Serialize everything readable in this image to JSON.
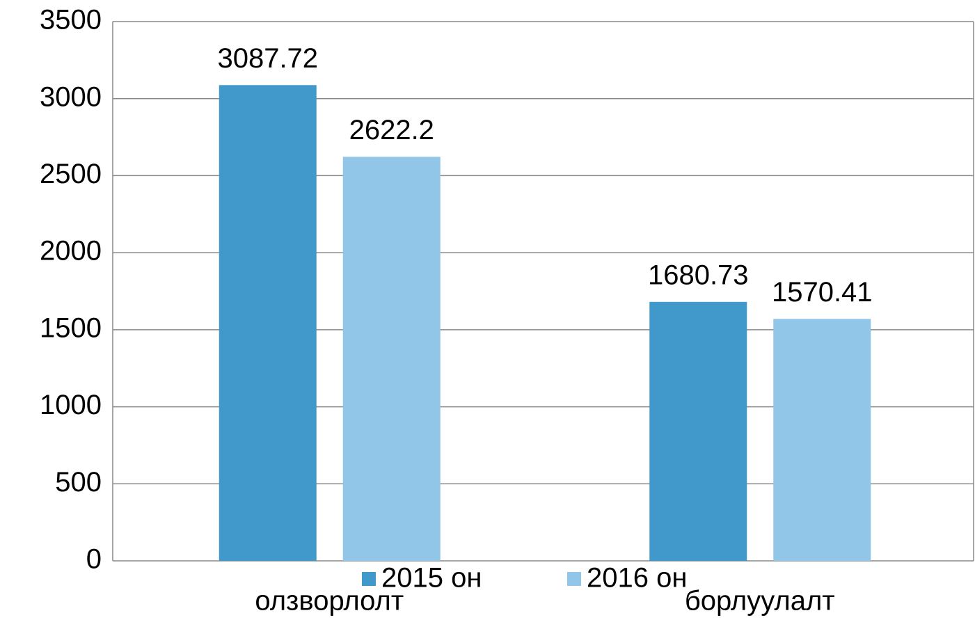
{
  "chart_data": {
    "type": "bar",
    "categories": [
      "олзворлолт",
      "борлуулалт"
    ],
    "series": [
      {
        "name": "2015 он",
        "color": "#4199cb",
        "values": [
          3087.72,
          1680.73
        ]
      },
      {
        "name": "2016 он",
        "color": "#92c6e9",
        "values": [
          2622.2,
          1570.41
        ]
      }
    ],
    "ylim": [
      0,
      3500
    ],
    "yticks": [
      0,
      500,
      1000,
      1500,
      2000,
      2500,
      3000,
      3500
    ],
    "grid": true,
    "legend": "bottom"
  }
}
